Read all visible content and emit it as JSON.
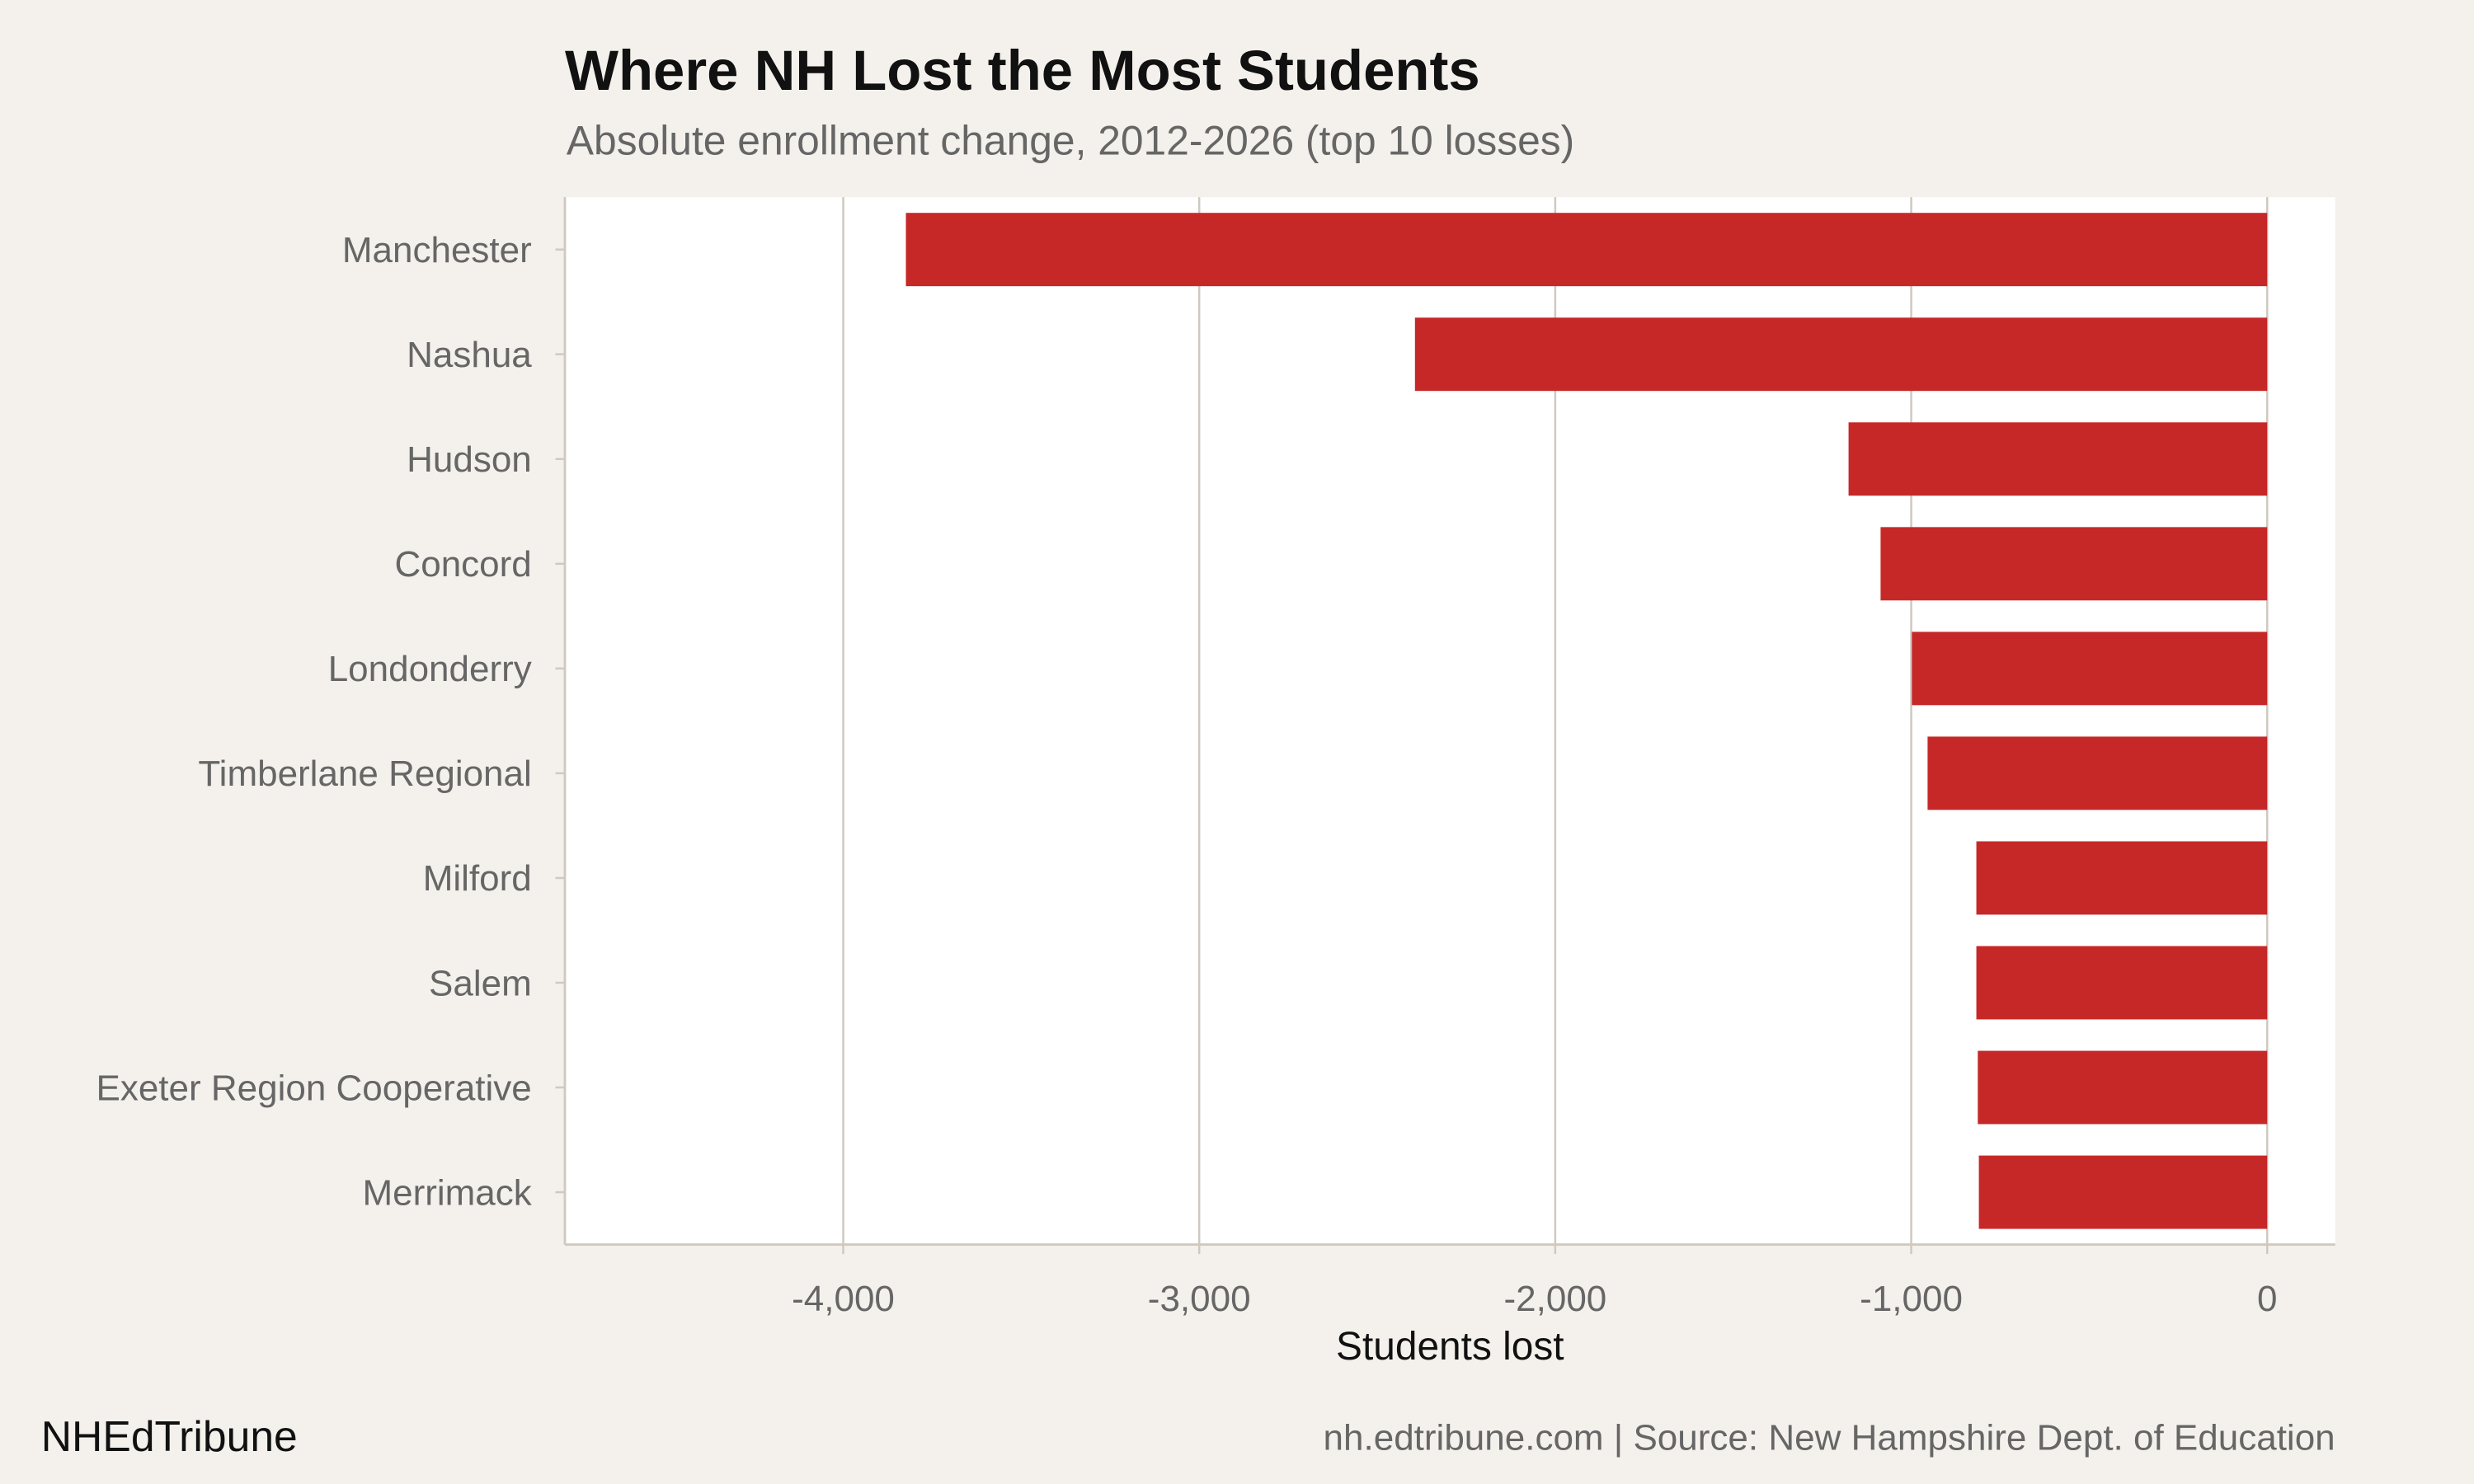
{
  "title": "Where NH Lost the Most Students",
  "subtitle": "Absolute enrollment change, 2012-2026 (top 10 losses)",
  "footer": {
    "brand": "NHEdTribune",
    "source": "nh.edtribune.com | Source: New Hampshire Dept. of Education"
  },
  "colors": {
    "bar": "#c62828",
    "background": "#f4f1ec",
    "panel": "#ffffff",
    "grid": "#cfc9c0"
  },
  "chart_data": {
    "type": "bar",
    "orientation": "horizontal",
    "categories": [
      "Manchester",
      "Nashua",
      "Hudson",
      "Concord",
      "Londonderry",
      "Timberlane Regional",
      "Milford",
      "Salem",
      "Exeter Region Cooperative",
      "Merrimack"
    ],
    "values": [
      -3824,
      -2394,
      -1176,
      -1086,
      -998,
      -954,
      -817,
      -817,
      -813,
      -810
    ],
    "xlabel": "Students lost",
    "ylabel": "",
    "xlim": [
      -4782,
      191
    ],
    "xticks": [
      -4000,
      -3000,
      -2000,
      -1000,
      0
    ],
    "xtick_labels": [
      "-4,000",
      "-3,000",
      "-2,000",
      "-1,000",
      "0"
    ],
    "grid": "vertical major",
    "legend": "none"
  }
}
